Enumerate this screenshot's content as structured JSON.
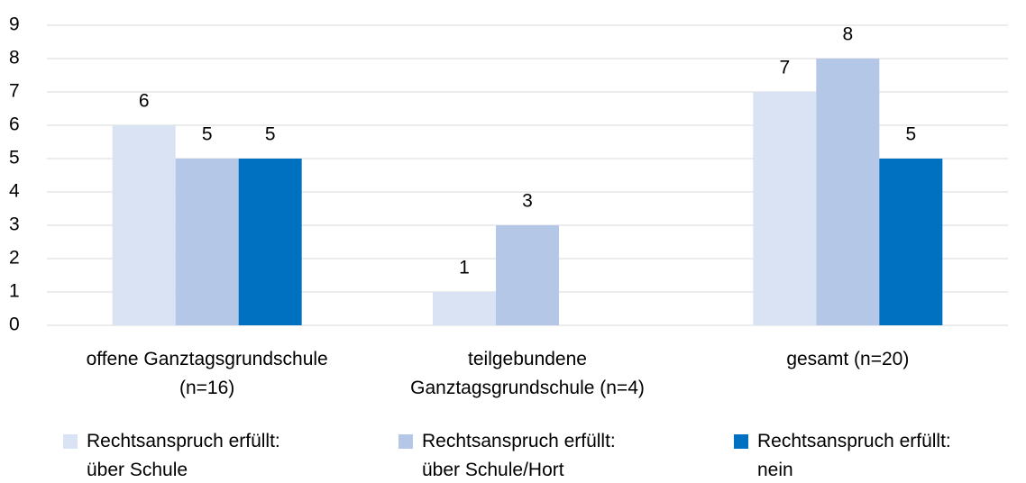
{
  "chart_data": {
    "type": "bar",
    "categories": [
      "offene Ganztagsgrundschule\n(n=16)",
      "teilgebundene\nGanztagsgrundschule (n=4)",
      "gesamt (n=20)"
    ],
    "series": [
      {
        "name": "Rechtsanspruch erfüllt:\nüber Schule",
        "color": "#dae3f3",
        "values": [
          6,
          1,
          7
        ]
      },
      {
        "name": "Rechtsanspruch erfüllt:\nüber Schule/Hort",
        "color": "#b4c7e7",
        "values": [
          5,
          3,
          8
        ]
      },
      {
        "name": "Rechtsanspruch erfüllt:\nnein",
        "color": "#0070c0",
        "values": [
          5,
          null,
          5
        ]
      }
    ],
    "ylim": [
      0,
      9
    ],
    "yticks": [
      0,
      1,
      2,
      3,
      4,
      5,
      6,
      7,
      8,
      9
    ],
    "grid": true,
    "legend": "bottom"
  }
}
